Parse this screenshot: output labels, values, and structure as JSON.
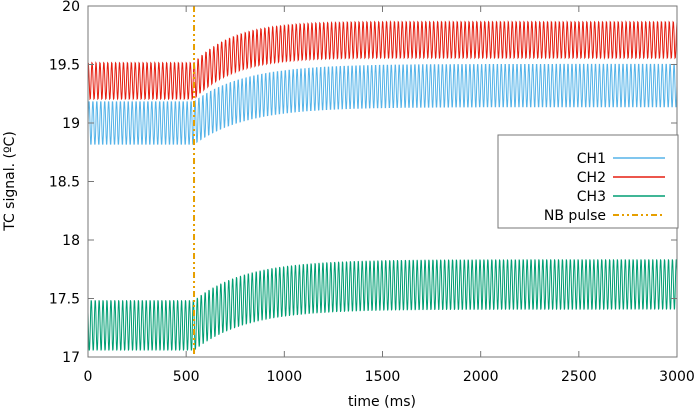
{
  "chart_data": {
    "type": "line",
    "xlabel": "time (ms)",
    "ylabel": "TC signal. (ºC)",
    "xlim": [
      0,
      3000
    ],
    "ylim": [
      17,
      20
    ],
    "xticks": [
      "0",
      "500",
      "1000",
      "1500",
      "2000",
      "2500",
      "3000"
    ],
    "yticks": [
      "17",
      "17.5",
      "18",
      "18.5",
      "19",
      "19.5",
      "20"
    ],
    "grid": false,
    "legend_position": "right",
    "oscillation_period_ms": 20,
    "series": [
      {
        "name": "CH1",
        "color": "#56b4e9",
        "mean_before": 19.0,
        "mean_after": 19.32,
        "amplitude": 0.19,
        "overshoot": 0.0
      },
      {
        "name": "CH2",
        "color": "#e51e10",
        "mean_before": 19.36,
        "mean_after": 19.71,
        "amplitude": 0.16,
        "overshoot": 0.06
      },
      {
        "name": "CH3",
        "color": "#009e73",
        "mean_before": 17.27,
        "mean_after": 17.62,
        "amplitude": 0.22,
        "overshoot": 0.0
      }
    ],
    "nb_pulse": {
      "name": "NB pulse",
      "time_ms": 540,
      "color": "#e69f00"
    }
  }
}
